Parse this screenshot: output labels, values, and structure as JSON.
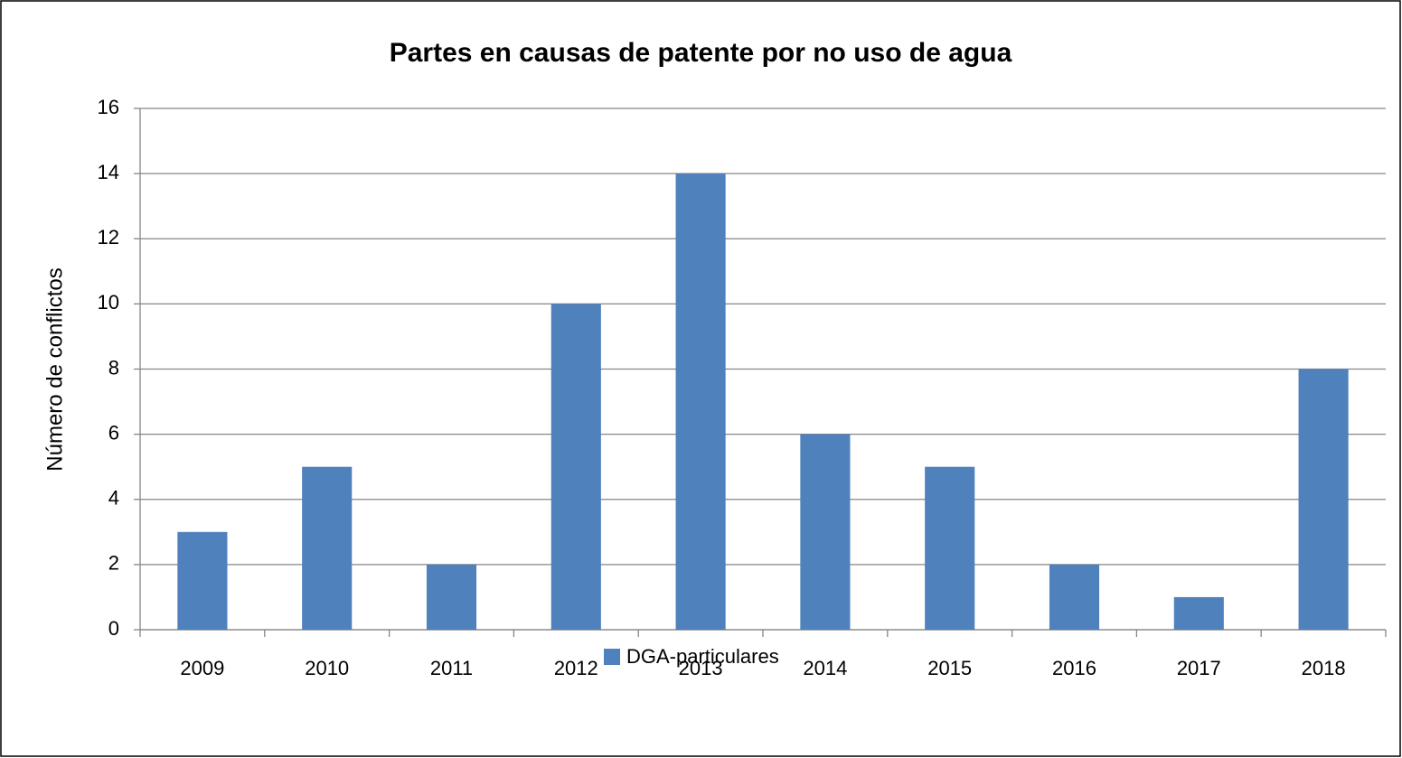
{
  "chart_data": {
    "type": "bar",
    "title": "Partes en causas de patente por no uso de agua",
    "y_label": "Número de conflictos",
    "categories": [
      "2009",
      "2010",
      "2011",
      "2012",
      "2013",
      "2014",
      "2015",
      "2016",
      "2017",
      "2018"
    ],
    "series": [
      {
        "name": "DGA-particulares",
        "color": "#4f81bd",
        "values": [
          3,
          5,
          2,
          10,
          14,
          6,
          5,
          2,
          1,
          8
        ]
      }
    ],
    "ylim": [
      0,
      16
    ],
    "yticks": [
      0,
      2,
      4,
      6,
      8,
      10,
      12,
      14,
      16
    ],
    "grid": true,
    "legend": "bottom"
  }
}
